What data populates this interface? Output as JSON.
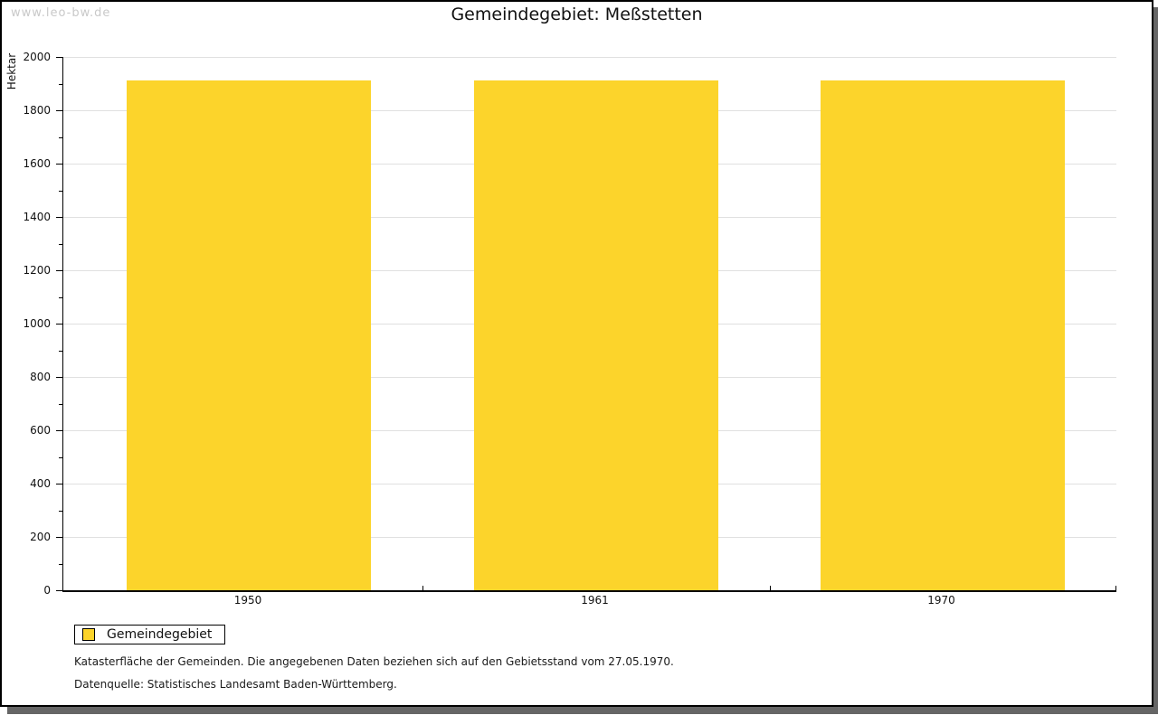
{
  "watermark": "www.leo-bw.de",
  "title": "Gemeindegebiet: Meßstetten",
  "chart_data": {
    "type": "bar",
    "title": "Gemeindegebiet: Meßstetten",
    "categories": [
      "1950",
      "1961",
      "1970"
    ],
    "series": [
      {
        "name": "Gemeindegebiet",
        "values": [
          1911,
          1911,
          1911
        ]
      }
    ],
    "xlabel": "",
    "ylabel": "Hektar",
    "ylim": [
      0,
      2000
    ],
    "ytick_step": 200,
    "yminor_step": 100,
    "grid": true,
    "legend_position": "bottom-left"
  },
  "legend": {
    "label": "Gemeindegebiet"
  },
  "notes": {
    "line1": "Katasterfläche der Gemeinden. Die angegebenen Daten beziehen sich auf den Gebietsstand vom 27.05.1970.",
    "line2": "Datenquelle: Statistisches Landesamt Baden-Württemberg."
  },
  "colors": {
    "bar": "#fcd42b",
    "grid": "#e0e0e0",
    "axis": "#000000",
    "watermark": "#c9c9c9",
    "shadow": "#666666"
  }
}
